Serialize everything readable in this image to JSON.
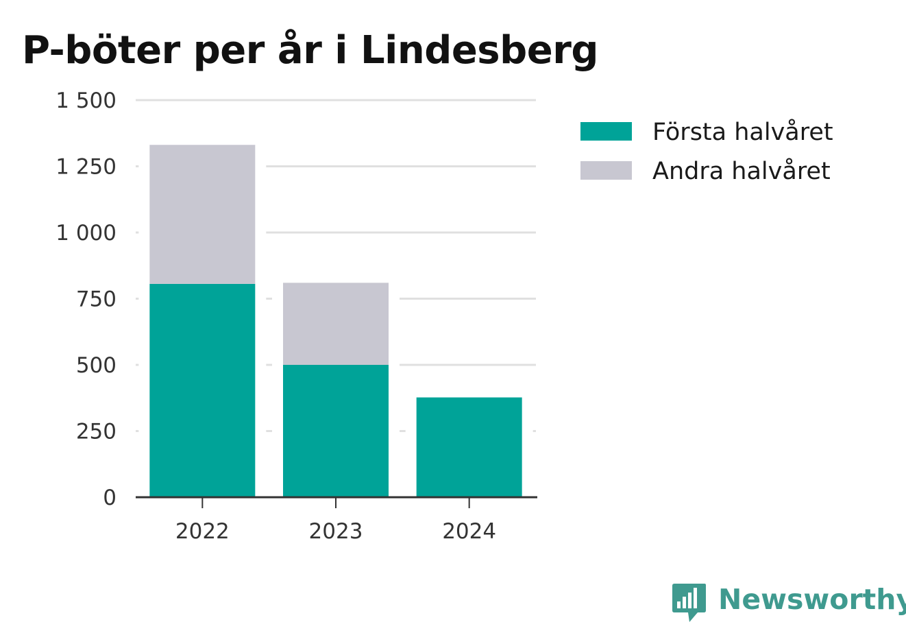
{
  "chart_data": {
    "type": "bar",
    "stacked": true,
    "title": "P-böter per år i Lindesberg",
    "categories": [
      "2022",
      "2023",
      "2024"
    ],
    "series": [
      {
        "name": "Första halvåret",
        "values": [
          806,
          500,
          377
        ],
        "color": "#00a398"
      },
      {
        "name": "Andra halvåret",
        "values": [
          525,
          310,
          0
        ],
        "color": "#c8c7d1"
      }
    ],
    "ylim": [
      0,
      1500
    ],
    "yticks": [
      0,
      250,
      500,
      750,
      1000,
      1250,
      1500
    ],
    "ytick_labels": [
      "0",
      "250",
      "500",
      "750",
      "1 000",
      "1 250",
      "1 500"
    ],
    "grid": true,
    "legend_position": "top-right"
  },
  "brand": {
    "name": "Newsworthy",
    "icon": "bar-chart-speech-bubble-icon",
    "color": "#3f9a8f"
  },
  "colors": {
    "grid": "#e0e0e0",
    "axis": "#333333"
  }
}
